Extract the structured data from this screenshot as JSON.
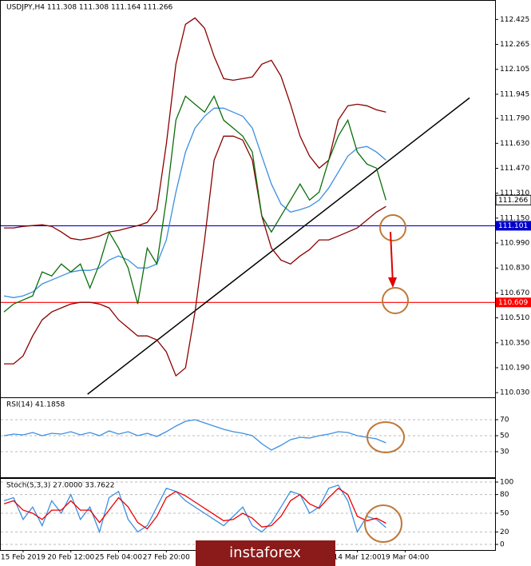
{
  "chart_data": [
    {
      "type": "line",
      "title": "USDJPY,H4  111.308 111.308 111.164 111.266",
      "ylim": [
        110.0,
        112.55
      ],
      "yticks": [
        112.425,
        112.265,
        112.105,
        111.945,
        {
          "value": 111.79,
          "label": "111.790"
        },
        {
          "value": 111.63,
          "label": "111.630"
        },
        {
          "value": 111.47,
          "label": "111.470"
        },
        {
          "value": 111.31,
          "label": "111.310"
        },
        {
          "value": 111.15,
          "label": "111.150"
        },
        {
          "value": 110.99,
          "label": "110.990"
        },
        {
          "value": 110.83,
          "label": "110.830"
        },
        {
          "value": 110.67,
          "label": "110.670"
        },
        {
          "value": 110.51,
          "label": "110.510"
        },
        {
          "value": 110.35,
          "label": "110.350"
        },
        {
          "value": 110.19,
          "label": "110.190"
        },
        {
          "value": 110.03,
          "label": "110.030"
        }
      ],
      "series": [
        {
          "color": "#8b0000",
          "values": [
            111.087,
            111.087,
            111.097,
            111.102,
            111.107,
            111.097,
            111.061,
            111.02,
            111.01,
            111.02,
            111.035,
            111.061,
            111.071,
            111.087,
            111.102,
            111.122,
            111.204,
            111.625,
            112.138,
            112.394,
            112.435,
            112.369,
            112.189,
            112.045,
            112.035,
            112.045,
            112.056,
            112.138,
            112.163,
            112.061,
            111.881,
            111.676,
            111.548,
            111.471,
            111.522,
            111.779,
            111.871,
            111.881,
            111.871,
            111.845,
            111.83,
            null,
            null,
            null,
            null,
            null,
            null,
            null,
            null,
            null,
            null,
            null
          ]
        },
        {
          "color": "#8b0000",
          "values": [
            110.215,
            110.215,
            110.266,
            110.394,
            110.497,
            110.548,
            110.574,
            110.599,
            110.61,
            110.61,
            110.599,
            110.574,
            110.497,
            110.446,
            110.394,
            110.394,
            110.369,
            110.292,
            110.138,
            110.189,
            110.548,
            111.01,
            111.522,
            111.676,
            111.676,
            111.651,
            111.522,
            111.163,
            110.958,
            110.881,
            110.856,
            110.907,
            110.948,
            111.01,
            111.01,
            111.035,
            111.061,
            111.087,
            111.138,
            111.189,
            111.225,
            null,
            null,
            null,
            null,
            null,
            null,
            null,
            null,
            null,
            null,
            null
          ]
        },
        {
          "color": "#3d8fe0",
          "values": [
            110.651,
            110.64,
            110.651,
            110.676,
            110.728,
            110.753,
            110.779,
            110.804,
            110.815,
            110.815,
            110.83,
            110.881,
            110.907,
            110.881,
            110.83,
            110.83,
            110.856,
            111.01,
            111.317,
            111.574,
            111.728,
            111.804,
            111.856,
            111.856,
            111.83,
            111.804,
            111.728,
            111.548,
            111.369,
            111.24,
            111.189,
            111.204,
            111.225,
            111.266,
            111.343,
            111.445,
            111.548,
            111.599,
            111.61,
            111.574,
            111.522,
            null,
            null,
            null,
            null,
            null,
            null,
            null,
            null,
            null,
            null,
            null
          ]
        },
        {
          "color": "#0a6e0a",
          "values": [
            110.548,
            110.599,
            110.625,
            110.651,
            110.805,
            110.779,
            110.856,
            110.805,
            110.856,
            110.702,
            110.856,
            111.061,
            110.958,
            110.83,
            110.599,
            110.958,
            110.856,
            111.266,
            111.779,
            111.933,
            111.881,
            111.83,
            111.933,
            111.779,
            111.728,
            111.676,
            111.574,
            111.164,
            111.061,
            111.164,
            111.266,
            111.369,
            111.266,
            111.317,
            111.522,
            111.676,
            111.779,
            111.574,
            111.497,
            111.471,
            111.266,
            null,
            null,
            null,
            null,
            null,
            null,
            null,
            null,
            null,
            null,
            null
          ]
        }
      ],
      "hlines": [
        {
          "value": 111.101,
          "color": "#0000cc"
        },
        {
          "value": 110.609,
          "color": "#ff0000"
        }
      ],
      "last": 111.266,
      "trendline": {
        "x": [
          8.75,
          48.75
        ],
        "y": [
          110.02,
          111.922
        ],
        "color": "#000000"
      }
    },
    {
      "type": "line",
      "title": "RSI(14) 41.1858",
      "ylim": [
        0,
        100
      ],
      "yticks": [
        30,
        50,
        70
      ],
      "grid": true,
      "series": [
        {
          "color": "#3d8fe0",
          "values": [
            50,
            52,
            51,
            54,
            50,
            53,
            52,
            55,
            51,
            54,
            50,
            56,
            52,
            55,
            50,
            53,
            49,
            55,
            62,
            68,
            70,
            66,
            62,
            58,
            55,
            53,
            50,
            40,
            32,
            38,
            45,
            48,
            47,
            50,
            52,
            55,
            54,
            50,
            48,
            46,
            41,
            null,
            null,
            null,
            null,
            null,
            null,
            null,
            null,
            null,
            null,
            null
          ]
        }
      ]
    },
    {
      "type": "line",
      "title": "Stoch(5,3,3) 27.0000 33.7622",
      "ylim": [
        0,
        100
      ],
      "yticks": [
        0,
        20,
        50,
        80,
        100
      ],
      "grid": true,
      "categories": [
        null,
        null,
        "15 Feb 2019",
        null,
        null,
        null,
        null,
        "20 Feb 12:00",
        null,
        null,
        null,
        null,
        "25 Feb 04:00",
        null,
        null,
        null,
        null,
        "27 Feb 20:00",
        null,
        null,
        null,
        null,
        null,
        null,
        null,
        null,
        null,
        null,
        null,
        null,
        null,
        null,
        null,
        null,
        null,
        null,
        null,
        "14 Mar 12:00",
        null,
        null,
        null,
        null,
        "19 Mar 04:00",
        null,
        null,
        null,
        null,
        null,
        null,
        null,
        null,
        null
      ],
      "series": [
        {
          "color": "#3d8fe0",
          "values": [
            70,
            75,
            40,
            60,
            30,
            70,
            50,
            80,
            40,
            60,
            20,
            75,
            85,
            40,
            20,
            30,
            60,
            90,
            85,
            70,
            60,
            50,
            40,
            30,
            45,
            60,
            30,
            20,
            35,
            60,
            85,
            80,
            50,
            60,
            90,
            95,
            70,
            20,
            45,
            40,
            27,
            null,
            null,
            null,
            null,
            null,
            null,
            null,
            null,
            null,
            null,
            null
          ]
        },
        {
          "color": "#ee0000",
          "values": [
            65,
            70,
            55,
            50,
            40,
            55,
            55,
            70,
            55,
            55,
            35,
            55,
            75,
            60,
            35,
            25,
            45,
            75,
            85,
            78,
            68,
            58,
            48,
            38,
            40,
            50,
            42,
            28,
            30,
            45,
            70,
            80,
            65,
            58,
            75,
            90,
            80,
            45,
            38,
            42,
            34,
            null,
            null,
            null,
            null,
            null,
            null,
            null,
            null,
            null,
            null,
            null
          ]
        }
      ]
    }
  ],
  "watermark": "instaforex"
}
